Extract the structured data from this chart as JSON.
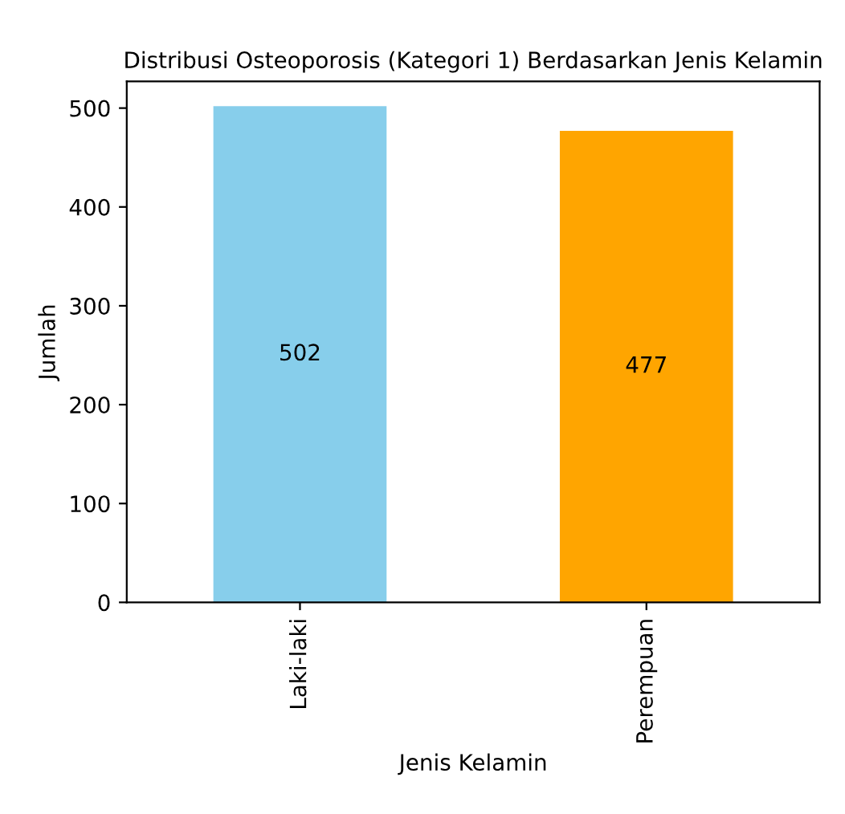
{
  "chart_data": {
    "type": "bar",
    "title": "Distribusi Osteoporosis (Kategori 1) Berdasarkan Jenis Kelamin",
    "categories": [
      "Laki-laki",
      "Perempuan"
    ],
    "values": [
      502,
      477
    ],
    "colors": [
      "#87ceeb",
      "#ffa500"
    ],
    "xlabel": "Jenis Kelamin",
    "ylabel": "Jumlah",
    "ylim": [
      0,
      527
    ],
    "yticks": [
      0,
      100,
      200,
      300,
      400,
      500
    ],
    "data_labels": true,
    "grid": false
  }
}
